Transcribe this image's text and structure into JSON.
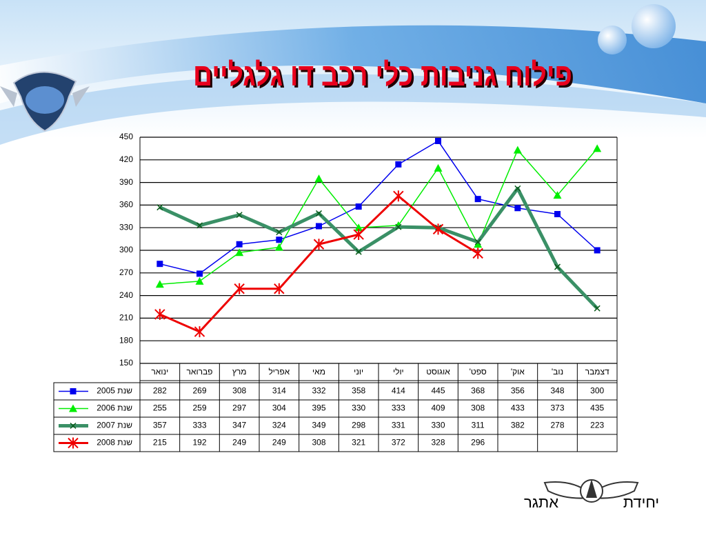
{
  "chart_data": {
    "type": "line",
    "title": "פילוח גניבות כלי רכב דו גלגליים",
    "categories": [
      "ינואר",
      "פברואר",
      "מרץ",
      "אפריל",
      "מאי",
      "יוני",
      "יולי",
      "אוגוסט",
      "ספט'",
      "אוק'",
      "נוב'",
      "דצמבר"
    ],
    "series": [
      {
        "name": "שנת 2005",
        "color": "#0000ee",
        "marker": "square",
        "values": [
          282,
          269,
          308,
          314,
          332,
          358,
          414,
          445,
          368,
          356,
          348,
          300
        ]
      },
      {
        "name": "שנת 2006",
        "color": "#00ee00",
        "marker": "triangle",
        "values": [
          255,
          259,
          297,
          304,
          395,
          330,
          333,
          409,
          308,
          433,
          373,
          435
        ]
      },
      {
        "name": "שנת 2007",
        "color": "#3a9066",
        "marker": "x",
        "values": [
          357,
          333,
          347,
          324,
          349,
          298,
          331,
          330,
          311,
          382,
          278,
          223
        ]
      },
      {
        "name": "שנת 2008",
        "color": "#ee0000",
        "marker": "star",
        "values": [
          215,
          192,
          249,
          249,
          308,
          321,
          372,
          328,
          296,
          null,
          null,
          null
        ]
      }
    ],
    "ylim": [
      150,
      450
    ],
    "yticks": [
      150,
      180,
      210,
      240,
      270,
      300,
      330,
      360,
      390,
      420,
      450
    ],
    "grid": true
  },
  "footer": {
    "left": "אתגר",
    "right": "יחידת"
  }
}
